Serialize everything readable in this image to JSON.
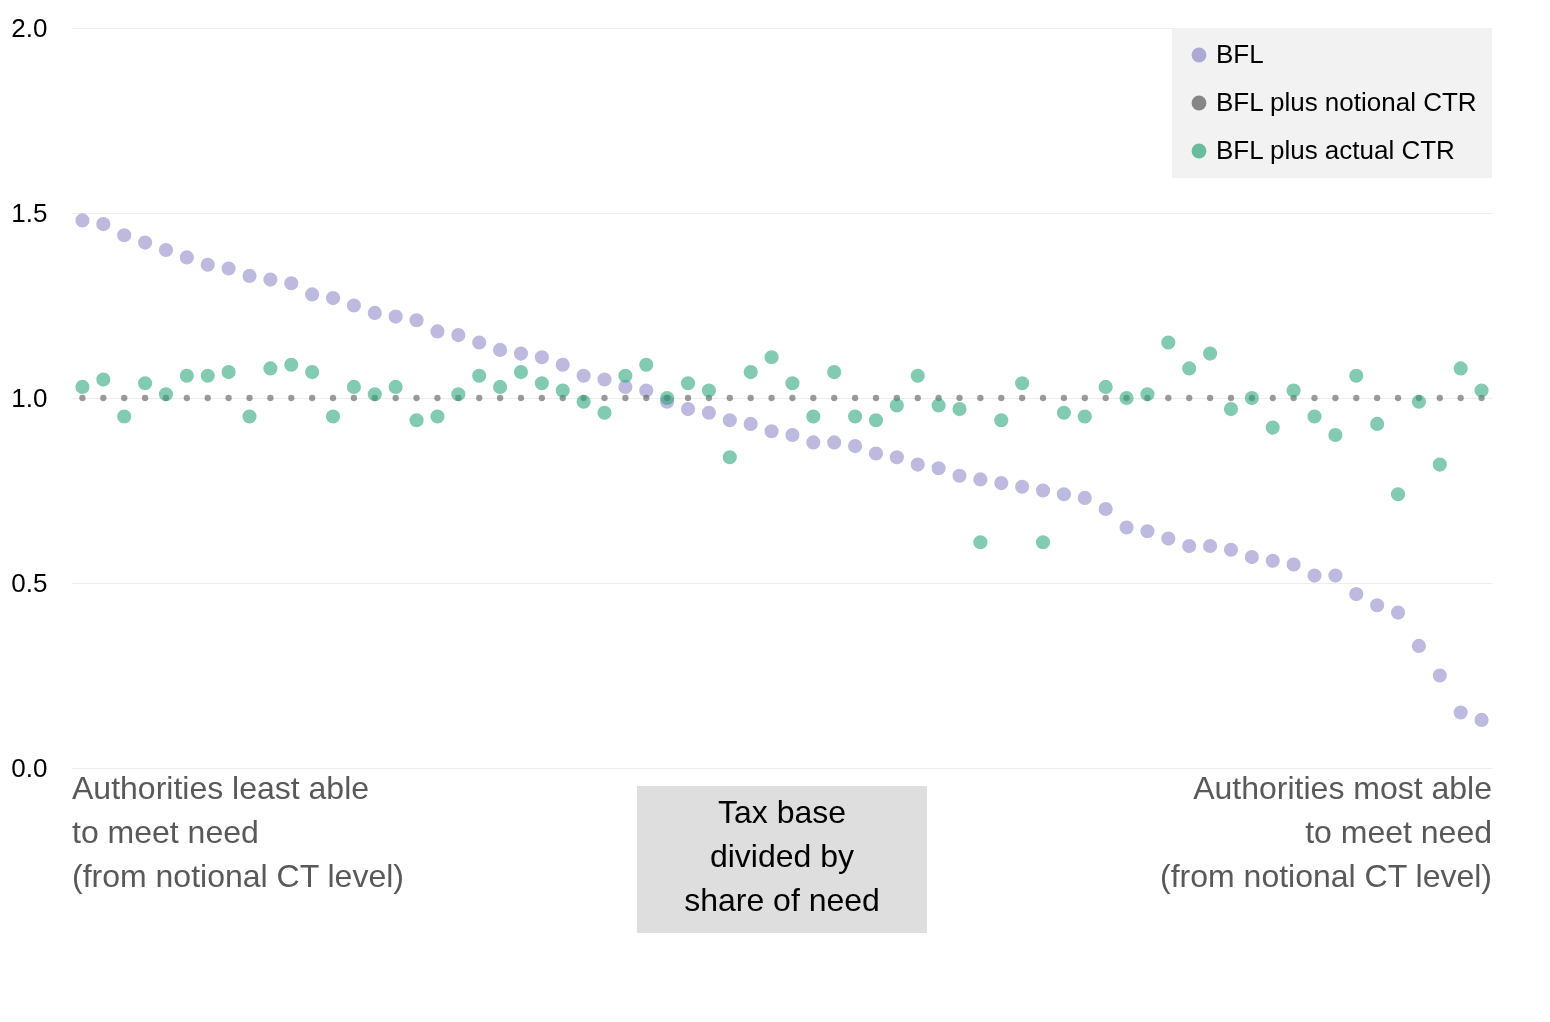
{
  "chart_data": {
    "type": "scatter",
    "categories": [
      null,
      null,
      null,
      null,
      null,
      null,
      null,
      null,
      null,
      null,
      null,
      null,
      null,
      null,
      null,
      null,
      null,
      null,
      null,
      null,
      null,
      null,
      null,
      null,
      null,
      null,
      null,
      null,
      null,
      null,
      null,
      null,
      null,
      null,
      null,
      null,
      null,
      null,
      null,
      null,
      null,
      null,
      null,
      null,
      null,
      null,
      null,
      null,
      null,
      null,
      null,
      null,
      null,
      null,
      null,
      null,
      null,
      null,
      null,
      null,
      null,
      null,
      null,
      null,
      null,
      null,
      null,
      null
    ],
    "series": [
      {
        "name": "BFL",
        "color": "#8f8cc8",
        "values": [
          1.48,
          1.47,
          1.44,
          1.42,
          1.4,
          1.38,
          1.36,
          1.35,
          1.33,
          1.32,
          1.31,
          1.28,
          1.27,
          1.25,
          1.23,
          1.22,
          1.21,
          1.18,
          1.17,
          1.15,
          1.13,
          1.12,
          1.11,
          1.09,
          1.06,
          1.05,
          1.03,
          1.02,
          0.99,
          0.97,
          0.96,
          0.94,
          0.93,
          0.91,
          0.9,
          0.88,
          0.88,
          0.87,
          0.85,
          0.84,
          0.82,
          0.81,
          0.79,
          0.78,
          0.77,
          0.76,
          0.75,
          0.74,
          0.73,
          0.7,
          0.65,
          0.64,
          0.62,
          0.6,
          0.6,
          0.59,
          0.57,
          0.56,
          0.55,
          0.52,
          0.52,
          0.47,
          0.44,
          0.42,
          0.33,
          0.25,
          0.15,
          0.13
        ]
      },
      {
        "name": "BFL plus notional CTR",
        "color": "#595959",
        "values": [
          1.0,
          1.0,
          1.0,
          1.0,
          1.0,
          1.0,
          1.0,
          1.0,
          1.0,
          1.0,
          1.0,
          1.0,
          1.0,
          1.0,
          1.0,
          1.0,
          1.0,
          1.0,
          1.0,
          1.0,
          1.0,
          1.0,
          1.0,
          1.0,
          1.0,
          1.0,
          1.0,
          1.0,
          1.0,
          1.0,
          1.0,
          1.0,
          1.0,
          1.0,
          1.0,
          1.0,
          1.0,
          1.0,
          1.0,
          1.0,
          1.0,
          1.0,
          1.0,
          1.0,
          1.0,
          1.0,
          1.0,
          1.0,
          1.0,
          1.0,
          1.0,
          1.0,
          1.0,
          1.0,
          1.0,
          1.0,
          1.0,
          1.0,
          1.0,
          1.0,
          1.0,
          1.0,
          1.0,
          1.0,
          1.0,
          1.0,
          1.0,
          1.0
        ]
      },
      {
        "name": "BFL plus actual CTR",
        "color": "#2ea67c",
        "values": [
          1.03,
          1.05,
          0.95,
          1.04,
          1.01,
          1.06,
          1.06,
          1.07,
          0.95,
          1.08,
          1.09,
          1.07,
          0.95,
          1.03,
          1.01,
          1.03,
          0.94,
          0.95,
          1.01,
          1.06,
          1.03,
          1.07,
          1.04,
          1.02,
          0.99,
          0.96,
          1.06,
          1.09,
          1.0,
          1.04,
          1.02,
          0.84,
          1.07,
          1.11,
          1.04,
          0.95,
          1.07,
          0.95,
          0.94,
          0.98,
          1.06,
          0.98,
          0.97,
          0.61,
          0.94,
          1.04,
          0.61,
          0.96,
          0.95,
          1.03,
          1.0,
          1.01,
          1.15,
          1.08,
          1.12,
          0.97,
          1.0,
          0.92,
          1.02,
          0.95,
          0.9,
          1.06,
          0.93,
          0.74,
          0.99,
          0.82,
          1.08,
          1.02
        ]
      }
    ],
    "ylim": [
      0,
      2
    ],
    "yticks": [
      {
        "value": 0,
        "label": "0.0"
      },
      {
        "value": 0.5,
        "label": "0.5"
      },
      {
        "value": 1,
        "label": "1.0"
      },
      {
        "value": 1.5,
        "label": "1.5"
      },
      {
        "value": 2,
        "label": "2.0"
      }
    ],
    "grid": "y",
    "legend": "top right",
    "marker": "circle",
    "tick_labels": "y",
    "annotations": [
      "Authorities least able\nto meet need\n(from notional CT level)",
      "Tax base\ndivided by\nshare of need",
      "Authorities most able\nto meet need\n(from notional CT level)"
    ]
  }
}
